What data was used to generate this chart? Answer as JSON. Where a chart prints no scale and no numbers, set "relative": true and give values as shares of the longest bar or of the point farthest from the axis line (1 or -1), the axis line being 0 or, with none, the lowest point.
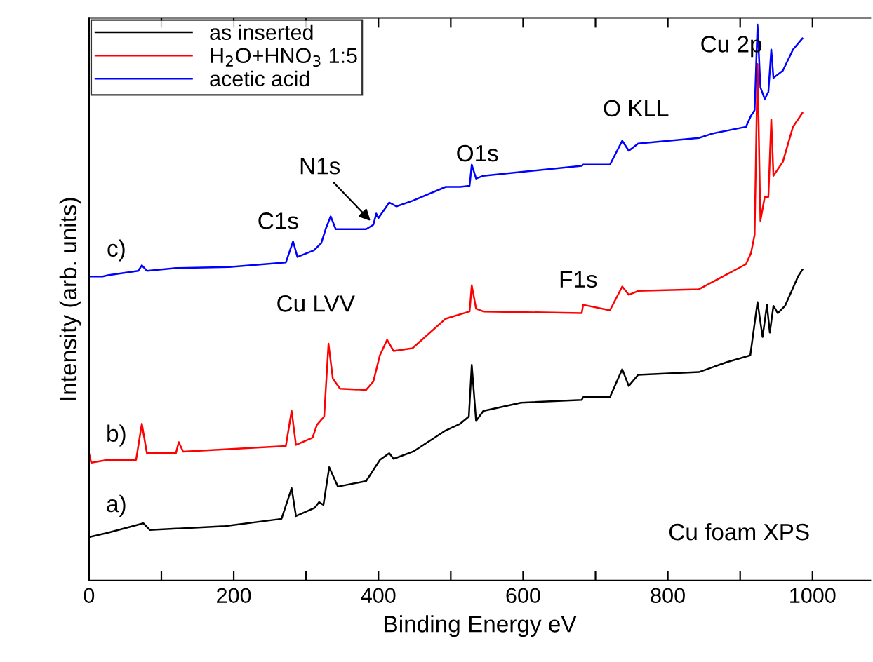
{
  "chart_data": {
    "type": "line",
    "relative": true,
    "xlabel": "Binding Energy eV",
    "ylabel": "Intensity (arb. units)",
    "xlim": [
      0,
      1080
    ],
    "xticks": [
      0,
      {
        "value": 100,
        "label": null
      },
      200,
      {
        "value": 300,
        "label": null
      },
      400,
      {
        "value": 500,
        "label": null
      },
      600,
      {
        "value": 700,
        "label": null
      },
      800,
      {
        "value": 900,
        "label": null
      },
      1000
    ],
    "legend": "top left",
    "grid": false,
    "marker": "none",
    "line_style": "solid",
    "tick_labels": "x",
    "series": [
      {
        "name": "as inserted",
        "color": "#000000",
        "x": [
          0,
          26,
          75,
          84,
          188,
          266,
          280,
          286,
          312,
          318,
          324,
          332,
          344,
          383,
          402,
          415,
          421,
          448,
          493,
          513,
          525,
          529,
          535,
          545,
          597,
          681,
          683,
          720,
          737,
          746,
          759,
          843,
          882,
          914,
          924,
          931,
          937,
          941,
          946,
          952,
          962,
          980,
          986
        ],
        "values": [
          0.078,
          0.086,
          0.103,
          0.091,
          0.098,
          0.111,
          0.166,
          0.116,
          0.131,
          0.141,
          0.136,
          0.204,
          0.169,
          0.179,
          0.217,
          0.229,
          0.219,
          0.232,
          0.27,
          0.282,
          0.295,
          0.388,
          0.287,
          0.305,
          0.32,
          0.325,
          0.33,
          0.33,
          0.38,
          0.35,
          0.37,
          0.375,
          0.393,
          0.405,
          0.501,
          0.438,
          0.496,
          0.446,
          0.494,
          0.481,
          0.494,
          0.547,
          0.559
        ]
      },
      {
        "name": "H$_{2}$O+HNO$_{3}$ 1:5",
        "color": "#ff0000",
        "x": [
          0,
          3,
          26,
          65,
          73,
          80,
          120,
          124,
          130,
          272,
          280,
          286,
          309,
          315,
          325,
          331,
          337,
          347,
          383,
          393,
          402,
          412,
          421,
          447,
          493,
          526,
          529,
          535,
          545,
          681,
          683,
          720,
          737,
          746,
          759,
          843,
          908,
          915,
          920,
          924,
          928,
          934,
          939,
          943,
          946,
          959,
          973,
          986
        ],
        "values": [
          0.229,
          0.212,
          0.217,
          0.217,
          0.282,
          0.229,
          0.229,
          0.249,
          0.232,
          0.242,
          0.305,
          0.244,
          0.257,
          0.28,
          0.295,
          0.426,
          0.363,
          0.345,
          0.343,
          0.358,
          0.405,
          0.433,
          0.413,
          0.418,
          0.471,
          0.484,
          0.531,
          0.489,
          0.484,
          0.481,
          0.496,
          0.486,
          0.529,
          0.514,
          0.521,
          0.524,
          0.569,
          0.589,
          0.622,
          0.929,
          0.647,
          0.69,
          0.69,
          0.829,
          0.728,
          0.753,
          0.816,
          0.841
        ]
      },
      {
        "name": "acetic acid",
        "color": "#0000ff",
        "x": [
          0,
          19,
          26,
          68,
          73,
          80,
          120,
          194,
          272,
          282,
          288,
          311,
          321,
          327,
          334,
          341,
          383,
          393,
          397,
          400,
          415,
          425,
          447,
          493,
          513,
          526,
          529,
          535,
          545,
          681,
          683,
          720,
          737,
          746,
          759,
          843,
          862,
          908,
          915,
          920,
          924,
          928,
          934,
          939,
          943,
          946,
          959,
          973,
          986
        ],
        "values": [
          0.547,
          0.547,
          0.549,
          0.557,
          0.567,
          0.557,
          0.562,
          0.564,
          0.572,
          0.61,
          0.582,
          0.594,
          0.607,
          0.632,
          0.655,
          0.632,
          0.632,
          0.64,
          0.66,
          0.652,
          0.68,
          0.673,
          0.683,
          0.708,
          0.708,
          0.71,
          0.748,
          0.723,
          0.728,
          0.746,
          0.748,
          0.748,
          0.791,
          0.773,
          0.786,
          0.796,
          0.804,
          0.816,
          0.836,
          0.846,
          1.0,
          0.887,
          0.866,
          0.879,
          0.955,
          0.904,
          0.917,
          0.955,
          0.975
        ]
      }
    ],
    "annotations": [
      "Cu 2p",
      "O KLL",
      "O1s",
      {
        "text": "N1s",
        "x": 389,
        "y": 0.647
      },
      "C1s",
      "Cu LVV",
      "F1s",
      "c)",
      "b)",
      "a)",
      "Cu foam XPS"
    ]
  }
}
